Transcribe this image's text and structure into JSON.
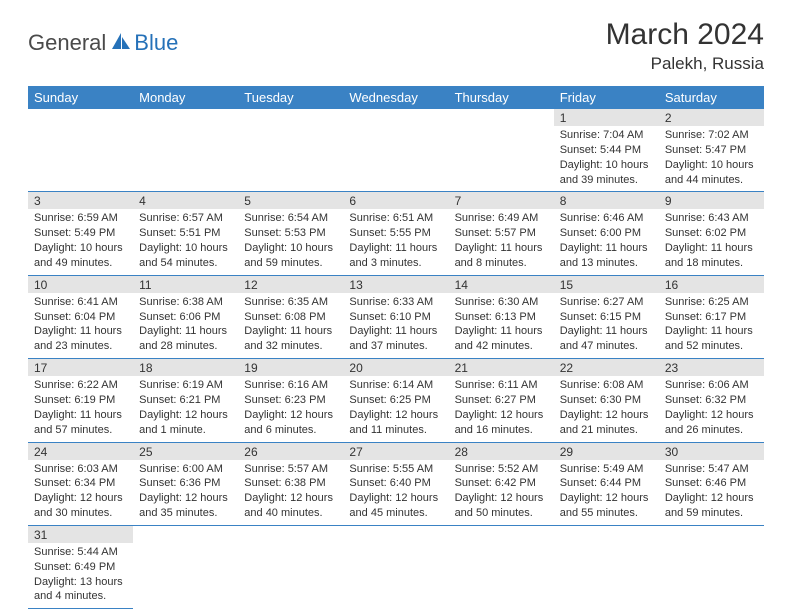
{
  "logo": {
    "part1": "General",
    "part2": "Blue"
  },
  "title": "March 2024",
  "location": "Palekh, Russia",
  "colors": {
    "header_bg": "#3a82c4",
    "header_text": "#ffffff",
    "daynum_bg": "#e4e4e4",
    "border": "#3a82c4",
    "logo_blue": "#2571b8",
    "logo_gray": "#4a4a4a"
  },
  "day_headers": [
    "Sunday",
    "Monday",
    "Tuesday",
    "Wednesday",
    "Thursday",
    "Friday",
    "Saturday"
  ],
  "weeks": [
    [
      null,
      null,
      null,
      null,
      null,
      {
        "n": "1",
        "sunrise": "Sunrise: 7:04 AM",
        "sunset": "Sunset: 5:44 PM",
        "daylight": "Daylight: 10 hours and 39 minutes."
      },
      {
        "n": "2",
        "sunrise": "Sunrise: 7:02 AM",
        "sunset": "Sunset: 5:47 PM",
        "daylight": "Daylight: 10 hours and 44 minutes."
      }
    ],
    [
      {
        "n": "3",
        "sunrise": "Sunrise: 6:59 AM",
        "sunset": "Sunset: 5:49 PM",
        "daylight": "Daylight: 10 hours and 49 minutes."
      },
      {
        "n": "4",
        "sunrise": "Sunrise: 6:57 AM",
        "sunset": "Sunset: 5:51 PM",
        "daylight": "Daylight: 10 hours and 54 minutes."
      },
      {
        "n": "5",
        "sunrise": "Sunrise: 6:54 AM",
        "sunset": "Sunset: 5:53 PM",
        "daylight": "Daylight: 10 hours and 59 minutes."
      },
      {
        "n": "6",
        "sunrise": "Sunrise: 6:51 AM",
        "sunset": "Sunset: 5:55 PM",
        "daylight": "Daylight: 11 hours and 3 minutes."
      },
      {
        "n": "7",
        "sunrise": "Sunrise: 6:49 AM",
        "sunset": "Sunset: 5:57 PM",
        "daylight": "Daylight: 11 hours and 8 minutes."
      },
      {
        "n": "8",
        "sunrise": "Sunrise: 6:46 AM",
        "sunset": "Sunset: 6:00 PM",
        "daylight": "Daylight: 11 hours and 13 minutes."
      },
      {
        "n": "9",
        "sunrise": "Sunrise: 6:43 AM",
        "sunset": "Sunset: 6:02 PM",
        "daylight": "Daylight: 11 hours and 18 minutes."
      }
    ],
    [
      {
        "n": "10",
        "sunrise": "Sunrise: 6:41 AM",
        "sunset": "Sunset: 6:04 PM",
        "daylight": "Daylight: 11 hours and 23 minutes."
      },
      {
        "n": "11",
        "sunrise": "Sunrise: 6:38 AM",
        "sunset": "Sunset: 6:06 PM",
        "daylight": "Daylight: 11 hours and 28 minutes."
      },
      {
        "n": "12",
        "sunrise": "Sunrise: 6:35 AM",
        "sunset": "Sunset: 6:08 PM",
        "daylight": "Daylight: 11 hours and 32 minutes."
      },
      {
        "n": "13",
        "sunrise": "Sunrise: 6:33 AM",
        "sunset": "Sunset: 6:10 PM",
        "daylight": "Daylight: 11 hours and 37 minutes."
      },
      {
        "n": "14",
        "sunrise": "Sunrise: 6:30 AM",
        "sunset": "Sunset: 6:13 PM",
        "daylight": "Daylight: 11 hours and 42 minutes."
      },
      {
        "n": "15",
        "sunrise": "Sunrise: 6:27 AM",
        "sunset": "Sunset: 6:15 PM",
        "daylight": "Daylight: 11 hours and 47 minutes."
      },
      {
        "n": "16",
        "sunrise": "Sunrise: 6:25 AM",
        "sunset": "Sunset: 6:17 PM",
        "daylight": "Daylight: 11 hours and 52 minutes."
      }
    ],
    [
      {
        "n": "17",
        "sunrise": "Sunrise: 6:22 AM",
        "sunset": "Sunset: 6:19 PM",
        "daylight": "Daylight: 11 hours and 57 minutes."
      },
      {
        "n": "18",
        "sunrise": "Sunrise: 6:19 AM",
        "sunset": "Sunset: 6:21 PM",
        "daylight": "Daylight: 12 hours and 1 minute."
      },
      {
        "n": "19",
        "sunrise": "Sunrise: 6:16 AM",
        "sunset": "Sunset: 6:23 PM",
        "daylight": "Daylight: 12 hours and 6 minutes."
      },
      {
        "n": "20",
        "sunrise": "Sunrise: 6:14 AM",
        "sunset": "Sunset: 6:25 PM",
        "daylight": "Daylight: 12 hours and 11 minutes."
      },
      {
        "n": "21",
        "sunrise": "Sunrise: 6:11 AM",
        "sunset": "Sunset: 6:27 PM",
        "daylight": "Daylight: 12 hours and 16 minutes."
      },
      {
        "n": "22",
        "sunrise": "Sunrise: 6:08 AM",
        "sunset": "Sunset: 6:30 PM",
        "daylight": "Daylight: 12 hours and 21 minutes."
      },
      {
        "n": "23",
        "sunrise": "Sunrise: 6:06 AM",
        "sunset": "Sunset: 6:32 PM",
        "daylight": "Daylight: 12 hours and 26 minutes."
      }
    ],
    [
      {
        "n": "24",
        "sunrise": "Sunrise: 6:03 AM",
        "sunset": "Sunset: 6:34 PM",
        "daylight": "Daylight: 12 hours and 30 minutes."
      },
      {
        "n": "25",
        "sunrise": "Sunrise: 6:00 AM",
        "sunset": "Sunset: 6:36 PM",
        "daylight": "Daylight: 12 hours and 35 minutes."
      },
      {
        "n": "26",
        "sunrise": "Sunrise: 5:57 AM",
        "sunset": "Sunset: 6:38 PM",
        "daylight": "Daylight: 12 hours and 40 minutes."
      },
      {
        "n": "27",
        "sunrise": "Sunrise: 5:55 AM",
        "sunset": "Sunset: 6:40 PM",
        "daylight": "Daylight: 12 hours and 45 minutes."
      },
      {
        "n": "28",
        "sunrise": "Sunrise: 5:52 AM",
        "sunset": "Sunset: 6:42 PM",
        "daylight": "Daylight: 12 hours and 50 minutes."
      },
      {
        "n": "29",
        "sunrise": "Sunrise: 5:49 AM",
        "sunset": "Sunset: 6:44 PM",
        "daylight": "Daylight: 12 hours and 55 minutes."
      },
      {
        "n": "30",
        "sunrise": "Sunrise: 5:47 AM",
        "sunset": "Sunset: 6:46 PM",
        "daylight": "Daylight: 12 hours and 59 minutes."
      }
    ],
    [
      {
        "n": "31",
        "sunrise": "Sunrise: 5:44 AM",
        "sunset": "Sunset: 6:49 PM",
        "daylight": "Daylight: 13 hours and 4 minutes."
      },
      null,
      null,
      null,
      null,
      null,
      null
    ]
  ]
}
